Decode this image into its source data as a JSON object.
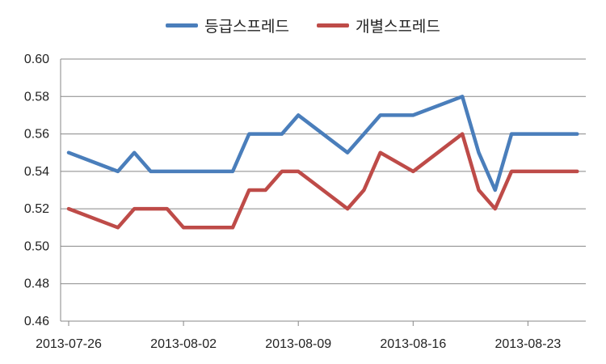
{
  "chart_data": {
    "type": "line",
    "title": "",
    "xlabel": "",
    "ylabel": "",
    "ylim": [
      0.46,
      0.6
    ],
    "yticks": [
      "0.46",
      "0.48",
      "0.50",
      "0.52",
      "0.54",
      "0.56",
      "0.58",
      "0.60"
    ],
    "xticks": [
      "2013-07-26",
      "2013-08-02",
      "2013-08-09",
      "2013-08-16",
      "2013-08-23"
    ],
    "grid": true,
    "legend_position": "top",
    "x": [
      "2013-07-26",
      "2013-07-29",
      "2013-07-30",
      "2013-07-31",
      "2013-08-01",
      "2013-08-02",
      "2013-08-05",
      "2013-08-06",
      "2013-08-07",
      "2013-08-08",
      "2013-08-09",
      "2013-08-12",
      "2013-08-13",
      "2013-08-14",
      "2013-08-16",
      "2013-08-19",
      "2013-08-20",
      "2013-08-21",
      "2013-08-22",
      "2013-08-26"
    ],
    "series": [
      {
        "name": "등급스프레드",
        "color": "#4a7ebb",
        "values": [
          0.55,
          0.54,
          0.55,
          0.54,
          0.54,
          0.54,
          0.54,
          0.56,
          0.56,
          0.56,
          0.57,
          0.55,
          0.56,
          0.57,
          0.57,
          0.58,
          0.55,
          0.53,
          0.56,
          0.56
        ]
      },
      {
        "name": "개별스프레드",
        "color": "#be4b48",
        "values": [
          0.52,
          0.51,
          0.52,
          0.52,
          0.52,
          0.51,
          0.51,
          0.53,
          0.53,
          0.54,
          0.54,
          0.52,
          0.53,
          0.55,
          0.54,
          0.56,
          0.53,
          0.52,
          0.54,
          0.54
        ]
      }
    ]
  }
}
